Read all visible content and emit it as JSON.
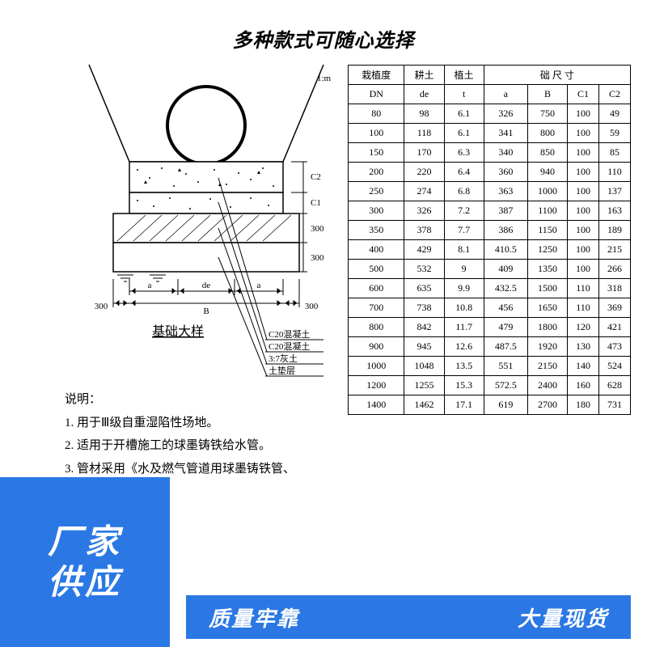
{
  "banners": {
    "top": "多种款式可随心选择",
    "cornerLine1": "厂家",
    "cornerLine2": "供应",
    "bottomLeft": "质量牢靠",
    "bottomRight": "大量现货"
  },
  "diagram": {
    "title": "基础大样",
    "labels": {
      "a_left": "a",
      "de": "de",
      "a_right": "a",
      "left300": "300",
      "B": "B",
      "right300": "300",
      "C2": "C2",
      "C1": "C1",
      "depth300a": "300",
      "depth300b": "300",
      "slope": "1:m",
      "legend1": "C20混凝土",
      "legend2": "C20混凝土",
      "legend3": "3:7灰土",
      "legend4": "土垫层"
    },
    "colors": {
      "line": "#000000",
      "concreteFill": "#ffffff",
      "gravelFill": "#ffffff",
      "soilFill": "#ffffff"
    }
  },
  "notes": {
    "header": "说明：",
    "line1": "1. 用于Ⅲ级自重湿陷性场地。",
    "line2": "2. 适用于开槽施工的球墨铸铁给水管。",
    "line3": "3. 管材采用《水及燃气管道用球墨铸铁管、"
  },
  "table": {
    "topHeader": "础 尺 寸",
    "obscured1": "栽植度",
    "obscured2": "耕土",
    "obscured3": "植土",
    "columns": [
      "DN",
      "de",
      "t",
      "a",
      "B",
      "C1",
      "C2"
    ],
    "rows": [
      [
        "80",
        "98",
        "6.1",
        "326",
        "750",
        "100",
        "49"
      ],
      [
        "100",
        "118",
        "6.1",
        "341",
        "800",
        "100",
        "59"
      ],
      [
        "150",
        "170",
        "6.3",
        "340",
        "850",
        "100",
        "85"
      ],
      [
        "200",
        "220",
        "6.4",
        "360",
        "940",
        "100",
        "110"
      ],
      [
        "250",
        "274",
        "6.8",
        "363",
        "1000",
        "100",
        "137"
      ],
      [
        "300",
        "326",
        "7.2",
        "387",
        "1100",
        "100",
        "163"
      ],
      [
        "350",
        "378",
        "7.7",
        "386",
        "1150",
        "100",
        "189"
      ],
      [
        "400",
        "429",
        "8.1",
        "410.5",
        "1250",
        "100",
        "215"
      ],
      [
        "500",
        "532",
        "9",
        "409",
        "1350",
        "100",
        "266"
      ],
      [
        "600",
        "635",
        "9.9",
        "432.5",
        "1500",
        "110",
        "318"
      ],
      [
        "700",
        "738",
        "10.8",
        "456",
        "1650",
        "110",
        "369"
      ],
      [
        "800",
        "842",
        "11.7",
        "479",
        "1800",
        "120",
        "421"
      ],
      [
        "900",
        "945",
        "12.6",
        "487.5",
        "1920",
        "130",
        "473"
      ],
      [
        "1000",
        "1048",
        "13.5",
        "551",
        "2150",
        "140",
        "524"
      ],
      [
        "1200",
        "1255",
        "15.3",
        "572.5",
        "2400",
        "160",
        "628"
      ],
      [
        "1400",
        "1462",
        "17.1",
        "619",
        "2700",
        "180",
        "731"
      ]
    ],
    "cell_fontsize": 12,
    "border_color": "#000000"
  },
  "meta": {
    "accent_blue": "#2b78e4"
  }
}
